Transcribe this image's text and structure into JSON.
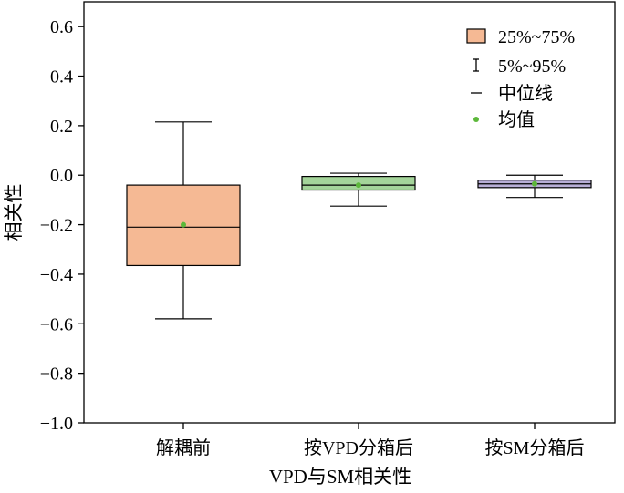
{
  "chart_data": {
    "type": "box",
    "xlabel": "VPD与SM相关性",
    "ylabel": "相关性",
    "ylim": [
      -1.0,
      0.7
    ],
    "yticks": [
      0.6,
      0.4,
      0.2,
      0.0,
      -0.2,
      -0.4,
      -0.6,
      -0.8,
      -1.0
    ],
    "ytick_labels": [
      "0.6",
      "0.4",
      "0.2",
      "0.0",
      "−0.2",
      "−0.4",
      "−0.6",
      "−0.8",
      "−1.0"
    ],
    "categories": [
      "解耦前",
      "按VPD分箱后",
      "按SM分箱后"
    ],
    "boxes": [
      {
        "category": "解耦前",
        "whisker_low": -0.58,
        "q1": -0.365,
        "median": -0.21,
        "q3": -0.04,
        "whisker_high": 0.215,
        "mean": -0.2,
        "fill": "#F5B994"
      },
      {
        "category": "按VPD分箱后",
        "whisker_low": -0.125,
        "q1": -0.06,
        "median": -0.04,
        "q3": -0.005,
        "whisker_high": 0.008,
        "mean": -0.04,
        "fill": "#A4D49A"
      },
      {
        "category": "按SM分箱后",
        "whisker_low": -0.09,
        "q1": -0.05,
        "median": -0.035,
        "q3": -0.02,
        "whisker_high": 0.0,
        "mean": -0.035,
        "fill": "#B8AED6"
      }
    ],
    "legend": {
      "position": "top-right",
      "items": [
        {
          "key": "box",
          "label": "25%~75%"
        },
        {
          "key": "whisker",
          "label": "5%~95%"
        },
        {
          "key": "median",
          "label": "中位线"
        },
        {
          "key": "mean",
          "label": "均值"
        }
      ]
    },
    "mean_color": "#5CB83A",
    "grid": false
  }
}
